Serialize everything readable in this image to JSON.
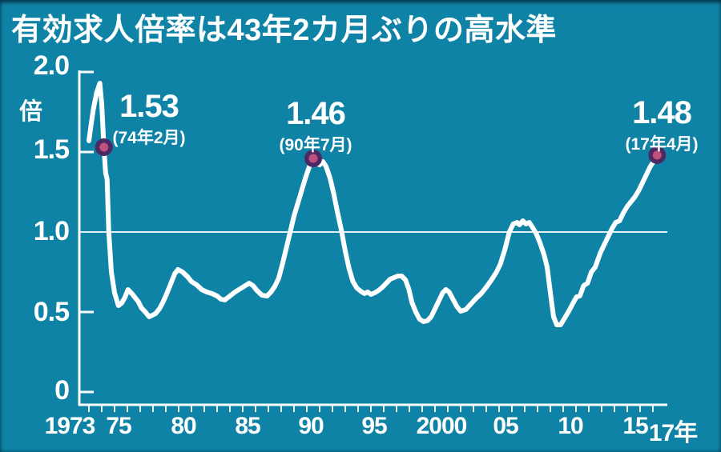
{
  "title": "有効求人倍率は43年2カ月ぶりの高水準",
  "colors": {
    "background": "#0f83a6",
    "line": "#ffffff",
    "axis": "#ffffff",
    "text": "#ffffff",
    "dot_outer": "#4b2a63",
    "dot_inner": "#c0517f"
  },
  "y_axis": {
    "unit": "倍",
    "tick_labels": [
      "2.0",
      "1.5",
      "1.0",
      "0.5",
      "0"
    ]
  },
  "x_axis": {
    "tick_labels": [
      "1973",
      "75",
      "80",
      "85",
      "90",
      "95",
      "2000",
      "05",
      "10",
      "15",
      "17年"
    ]
  },
  "chart_data": {
    "type": "line",
    "title": "有効求人倍率は43年2カ月ぶりの高水準",
    "ylabel": "倍",
    "ylim": [
      0,
      2.0
    ],
    "y_ticks": [
      0,
      0.5,
      1.0,
      1.5,
      2.0
    ],
    "xlim": [
      1973,
      2017.4
    ],
    "x_ticks": [
      1973,
      1975,
      1980,
      1985,
      1990,
      1995,
      2000,
      2005,
      2010,
      2015,
      2017
    ],
    "reference_line_y": 1.0,
    "grid": false,
    "highlights": [
      {
        "year": 1974.17,
        "value": 1.53,
        "value_label": "1.53",
        "date_label": "(74年2月)"
      },
      {
        "year": 1990.5,
        "value": 1.46,
        "value_label": "1.46",
        "date_label": "(90年7月)"
      },
      {
        "year": 2017.33,
        "value": 1.48,
        "value_label": "1.48",
        "date_label": "(17年4月)"
      }
    ],
    "series": [
      {
        "name": "有効求人倍率",
        "points": [
          [
            1973.0,
            1.57
          ],
          [
            1973.15,
            1.66
          ],
          [
            1973.35,
            1.77
          ],
          [
            1973.6,
            1.87
          ],
          [
            1973.85,
            1.93
          ],
          [
            1974.0,
            1.8
          ],
          [
            1974.17,
            1.53
          ],
          [
            1974.3,
            1.37
          ],
          [
            1974.42,
            1.33
          ],
          [
            1974.55,
            1.0
          ],
          [
            1974.75,
            0.75
          ],
          [
            1975.0,
            0.62
          ],
          [
            1975.3,
            0.54
          ],
          [
            1975.55,
            0.555
          ],
          [
            1975.8,
            0.59
          ],
          [
            1976.05,
            0.64
          ],
          [
            1976.35,
            0.615
          ],
          [
            1976.6,
            0.59
          ],
          [
            1976.85,
            0.565
          ],
          [
            1977.1,
            0.525
          ],
          [
            1977.4,
            0.5
          ],
          [
            1977.7,
            0.47
          ],
          [
            1977.95,
            0.48
          ],
          [
            1978.2,
            0.49
          ],
          [
            1978.5,
            0.52
          ],
          [
            1978.8,
            0.565
          ],
          [
            1979.1,
            0.62
          ],
          [
            1979.4,
            0.68
          ],
          [
            1979.7,
            0.74
          ],
          [
            1979.95,
            0.765
          ],
          [
            1980.3,
            0.75
          ],
          [
            1980.7,
            0.72
          ],
          [
            1981.0,
            0.69
          ],
          [
            1981.4,
            0.67
          ],
          [
            1981.8,
            0.64
          ],
          [
            1982.2,
            0.625
          ],
          [
            1982.6,
            0.615
          ],
          [
            1983.0,
            0.6
          ],
          [
            1983.3,
            0.58
          ],
          [
            1983.6,
            0.575
          ],
          [
            1984.0,
            0.6
          ],
          [
            1984.4,
            0.625
          ],
          [
            1984.8,
            0.645
          ],
          [
            1985.2,
            0.665
          ],
          [
            1985.5,
            0.68
          ],
          [
            1985.8,
            0.665
          ],
          [
            1986.1,
            0.635
          ],
          [
            1986.5,
            0.605
          ],
          [
            1986.9,
            0.6
          ],
          [
            1987.2,
            0.625
          ],
          [
            1987.5,
            0.66
          ],
          [
            1987.8,
            0.71
          ],
          [
            1988.1,
            0.8
          ],
          [
            1988.4,
            0.9
          ],
          [
            1988.7,
            1.0
          ],
          [
            1989.0,
            1.1
          ],
          [
            1989.3,
            1.18
          ],
          [
            1989.6,
            1.26
          ],
          [
            1989.9,
            1.34
          ],
          [
            1990.2,
            1.41
          ],
          [
            1990.5,
            1.46
          ],
          [
            1990.7,
            1.43
          ],
          [
            1991.0,
            1.42
          ],
          [
            1991.25,
            1.44
          ],
          [
            1991.5,
            1.41
          ],
          [
            1991.8,
            1.34
          ],
          [
            1992.1,
            1.24
          ],
          [
            1992.4,
            1.12
          ],
          [
            1992.7,
            1.01
          ],
          [
            1993.0,
            0.88
          ],
          [
            1993.3,
            0.77
          ],
          [
            1993.6,
            0.69
          ],
          [
            1993.9,
            0.65
          ],
          [
            1994.2,
            0.63
          ],
          [
            1994.5,
            0.615
          ],
          [
            1994.75,
            0.625
          ],
          [
            1995.0,
            0.61
          ],
          [
            1995.3,
            0.62
          ],
          [
            1995.6,
            0.635
          ],
          [
            1995.9,
            0.655
          ],
          [
            1996.2,
            0.68
          ],
          [
            1996.5,
            0.705
          ],
          [
            1996.8,
            0.715
          ],
          [
            1997.1,
            0.725
          ],
          [
            1997.4,
            0.725
          ],
          [
            1997.7,
            0.7
          ],
          [
            1997.95,
            0.645
          ],
          [
            1998.2,
            0.56
          ],
          [
            1998.5,
            0.5
          ],
          [
            1998.8,
            0.455
          ],
          [
            1999.1,
            0.44
          ],
          [
            1999.4,
            0.445
          ],
          [
            1999.7,
            0.47
          ],
          [
            2000.0,
            0.52
          ],
          [
            2000.3,
            0.57
          ],
          [
            2000.6,
            0.62
          ],
          [
            2000.85,
            0.64
          ],
          [
            2001.1,
            0.625
          ],
          [
            2001.4,
            0.58
          ],
          [
            2001.7,
            0.535
          ],
          [
            2002.0,
            0.505
          ],
          [
            2002.4,
            0.515
          ],
          [
            2002.8,
            0.55
          ],
          [
            2003.2,
            0.585
          ],
          [
            2003.6,
            0.615
          ],
          [
            2004.0,
            0.655
          ],
          [
            2004.4,
            0.7
          ],
          [
            2004.8,
            0.75
          ],
          [
            2005.1,
            0.8
          ],
          [
            2005.45,
            0.89
          ],
          [
            2005.8,
            1.0
          ],
          [
            2006.1,
            1.05
          ],
          [
            2006.4,
            1.06
          ],
          [
            2006.6,
            1.045
          ],
          [
            2006.85,
            1.07
          ],
          [
            2007.1,
            1.05
          ],
          [
            2007.35,
            1.06
          ],
          [
            2007.6,
            1.03
          ],
          [
            2007.9,
            0.99
          ],
          [
            2008.2,
            0.93
          ],
          [
            2008.5,
            0.86
          ],
          [
            2008.75,
            0.78
          ],
          [
            2009.0,
            0.62
          ],
          [
            2009.25,
            0.47
          ],
          [
            2009.5,
            0.42
          ],
          [
            2009.8,
            0.42
          ],
          [
            2010.1,
            0.46
          ],
          [
            2010.4,
            0.5
          ],
          [
            2010.8,
            0.56
          ],
          [
            2011.05,
            0.595
          ],
          [
            2011.3,
            0.6
          ],
          [
            2011.6,
            0.665
          ],
          [
            2011.9,
            0.68
          ],
          [
            2012.2,
            0.75
          ],
          [
            2012.5,
            0.78
          ],
          [
            2012.9,
            0.87
          ],
          [
            2013.2,
            0.92
          ],
          [
            2013.5,
            0.97
          ],
          [
            2013.8,
            1.02
          ],
          [
            2014.1,
            1.06
          ],
          [
            2014.4,
            1.07
          ],
          [
            2014.7,
            1.12
          ],
          [
            2015.0,
            1.16
          ],
          [
            2015.3,
            1.19
          ],
          [
            2015.6,
            1.22
          ],
          [
            2015.9,
            1.26
          ],
          [
            2016.2,
            1.31
          ],
          [
            2016.5,
            1.36
          ],
          [
            2016.8,
            1.41
          ],
          [
            2017.05,
            1.44
          ],
          [
            2017.33,
            1.48
          ]
        ]
      }
    ]
  }
}
